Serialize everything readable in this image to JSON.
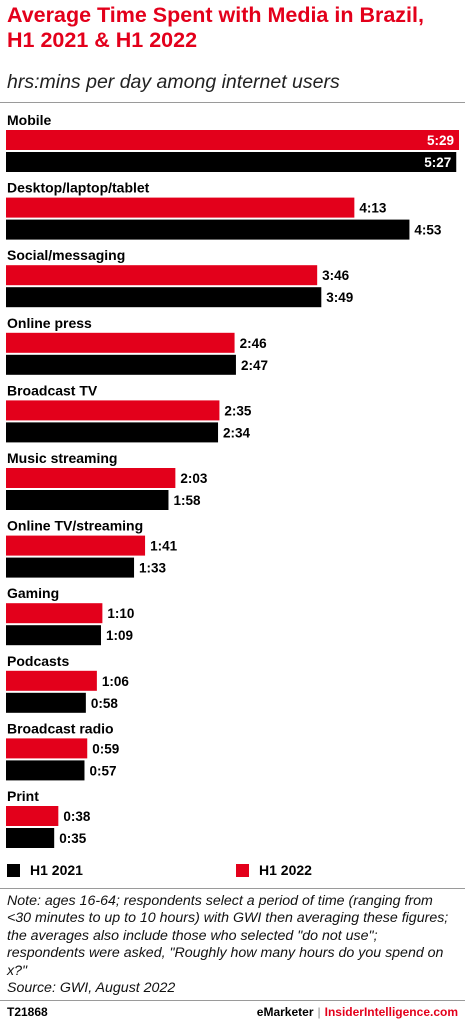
{
  "header": {
    "title": "Average Time Spent with Media in Brazil, H1 2021 & H1 2022",
    "subtitle": "hrs:mins per day among internet users"
  },
  "colors": {
    "h1_2022": "#e3001b",
    "h1_2021": "#000000"
  },
  "chart_data": {
    "type": "bar",
    "orientation": "horizontal",
    "value_unit": "hrs:mins per day",
    "categories": [
      "Mobile",
      "Desktop/laptop/tablet",
      "Social/messaging",
      "Online press",
      "Broadcast TV",
      "Music streaming",
      "Online TV/streaming",
      "Gaming",
      "Podcasts",
      "Broadcast radio",
      "Print"
    ],
    "series": [
      {
        "name": "H1 2022",
        "color": "#e3001b",
        "labels": [
          "5:29",
          "4:13",
          "3:46",
          "2:46",
          "2:35",
          "2:03",
          "1:41",
          "1:10",
          "1:06",
          "0:59",
          "0:38"
        ],
        "values_minutes": [
          329,
          253,
          226,
          166,
          155,
          123,
          101,
          70,
          66,
          59,
          38
        ]
      },
      {
        "name": "H1 2021",
        "color": "#000000",
        "labels": [
          "5:27",
          "4:53",
          "3:49",
          "2:47",
          "2:34",
          "1:58",
          "1:33",
          "1:09",
          "0:58",
          "0:57",
          "0:35"
        ],
        "values_minutes": [
          327,
          293,
          229,
          167,
          154,
          118,
          93,
          69,
          58,
          57,
          35
        ]
      }
    ],
    "legend": [
      "H1 2021",
      "H1 2022"
    ],
    "legend_position": "bottom",
    "grid": false
  },
  "note": "Note: ages 16-64; respondents select a period of time (ranging from <30 minutes to up to 10 hours) with GWI then averaging these figures; the averages also include those who selected \"do not use\"; respondents were asked, \"Roughly how many hours do you spend on x?\"",
  "source": "Source:  GWI, August 2022",
  "footer": {
    "id": "T21868",
    "brand1": "eMarketer",
    "separator": "|",
    "brand2": "InsiderIntelligence.com"
  }
}
